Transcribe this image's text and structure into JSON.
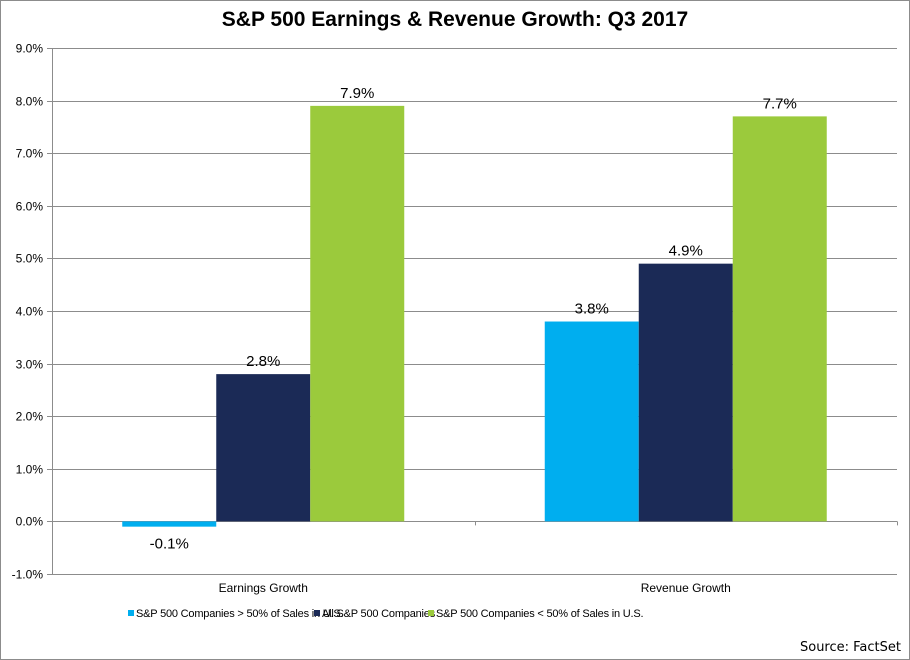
{
  "chart_data": {
    "type": "bar",
    "title": "S&P 500 Earnings & Revenue Growth: Q3 2017",
    "xlabel": "",
    "ylabel": "",
    "categories": [
      "Earnings Growth",
      "Revenue Growth"
    ],
    "series": [
      {
        "name": "S&P 500 Companies > 50% of Sales in U.S.",
        "color": "#00AEEF",
        "values": [
          -0.1,
          3.8
        ],
        "labels": [
          "-0.1%",
          "3.8%"
        ]
      },
      {
        "name": "All S&P 500 Companies",
        "color": "#1B2A56",
        "values": [
          2.8,
          4.9
        ],
        "labels": [
          "2.8%",
          "4.9%"
        ]
      },
      {
        "name": "S&P 500 Companies < 50% of Sales in U.S.",
        "color": "#9BCA3C",
        "values": [
          7.9,
          7.7
        ],
        "labels": [
          "7.9%",
          "7.7%"
        ]
      }
    ],
    "ylim": [
      -1.0,
      9.0
    ],
    "yticks": [
      -1.0,
      0.0,
      1.0,
      2.0,
      3.0,
      4.0,
      5.0,
      6.0,
      7.0,
      8.0,
      9.0
    ],
    "ytick_labels": [
      "-1.0%",
      "0.0%",
      "1.0%",
      "2.0%",
      "3.0%",
      "4.0%",
      "5.0%",
      "6.0%",
      "7.0%",
      "8.0%",
      "9.0%"
    ],
    "grid": true,
    "legend_position": "bottom",
    "source": "Source: FactSet"
  }
}
